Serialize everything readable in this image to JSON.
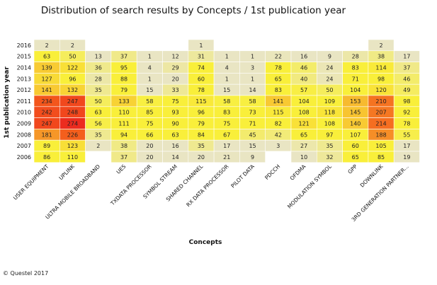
{
  "chart_data": {
    "type": "heatmap",
    "title": "Distribution of search results by Concepts / 1st publication year",
    "xlabel": "Concepts",
    "ylabel": "1st publication year",
    "rows": [
      "2016",
      "2015",
      "2014",
      "2013",
      "2012",
      "2011",
      "2010",
      "2009",
      "2008",
      "2007",
      "2006"
    ],
    "columns": [
      "USER EQUIPMENT",
      "UPLINK",
      "ULTRA MOBILE BROADBAND",
      "UES",
      "TXDATA PROCESSOR",
      "SYMBOL STREAM",
      "SHARED CHANNEL",
      "RX DATA PROCESSOR",
      "PILOT DATA",
      "PDCCH",
      "OFDMA",
      "MODULATION SYMBOL",
      "GPP",
      "DOWNLINK",
      "3RD GENERATION PARTNER..."
    ],
    "values": [
      [
        2,
        2,
        null,
        null,
        null,
        null,
        1,
        null,
        null,
        null,
        null,
        null,
        null,
        2,
        null
      ],
      [
        63,
        50,
        13,
        37,
        1,
        12,
        31,
        1,
        1,
        22,
        16,
        9,
        28,
        38,
        17
      ],
      [
        139,
        122,
        36,
        95,
        4,
        29,
        74,
        4,
        3,
        78,
        46,
        24,
        83,
        114,
        37
      ],
      [
        127,
        96,
        28,
        88,
        1,
        20,
        60,
        1,
        1,
        65,
        40,
        24,
        71,
        98,
        46
      ],
      [
        141,
        132,
        35,
        79,
        15,
        33,
        78,
        15,
        14,
        83,
        57,
        50,
        104,
        120,
        49
      ],
      [
        234,
        247,
        50,
        133,
        58,
        75,
        115,
        58,
        58,
        141,
        104,
        109,
        153,
        210,
        98
      ],
      [
        242,
        248,
        63,
        110,
        85,
        93,
        96,
        83,
        73,
        115,
        108,
        118,
        145,
        207,
        92
      ],
      [
        247,
        274,
        56,
        111,
        75,
        90,
        79,
        75,
        71,
        82,
        121,
        108,
        140,
        214,
        78
      ],
      [
        181,
        226,
        35,
        94,
        66,
        63,
        84,
        67,
        45,
        42,
        65,
        97,
        107,
        188,
        55
      ],
      [
        89,
        123,
        2,
        38,
        20,
        16,
        35,
        17,
        15,
        3,
        27,
        35,
        60,
        105,
        17
      ],
      [
        86,
        110,
        null,
        37,
        20,
        14,
        20,
        21,
        9,
        null,
        10,
        32,
        65,
        85,
        19
      ]
    ],
    "colors": {
      "empty": "#ffffff",
      "low": "#e9e5c3",
      "mid": "#f9ef3a",
      "high": "#f45a1c",
      "max": "#ec2b1f"
    },
    "legend": "none"
  },
  "footer": {
    "copyright": "© Questel 2017"
  }
}
